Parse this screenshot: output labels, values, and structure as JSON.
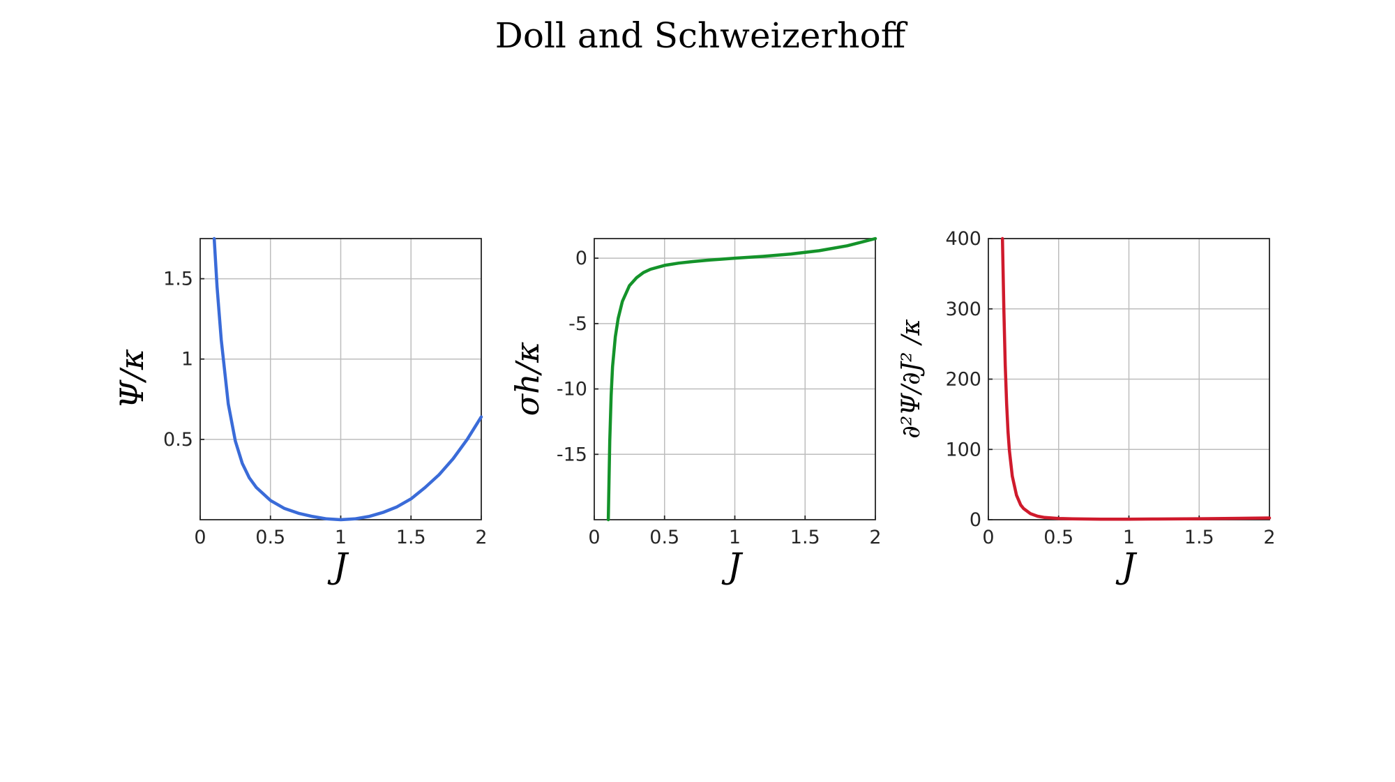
{
  "figure": {
    "title": "Doll and Schweizerhoff"
  },
  "chart_data": [
    {
      "type": "line",
      "title": "",
      "xlabel": "J",
      "ylabel": "Ψ/κ",
      "xlim": [
        0,
        2
      ],
      "ylim": [
        0,
        1.75
      ],
      "xticks": [
        0,
        0.5,
        1,
        1.5,
        2
      ],
      "xtick_labels": [
        "0",
        "0.5",
        "1",
        "1.5",
        "2"
      ],
      "yticks": [
        0.5,
        1,
        1.5
      ],
      "ytick_labels": [
        "0.5",
        "1",
        "1.5"
      ],
      "grid": true,
      "color": "#3a6bd8",
      "series": [
        {
          "x": [
            0.1,
            0.12,
            0.15,
            0.2,
            0.25,
            0.3,
            0.35,
            0.4,
            0.5,
            0.6,
            0.7,
            0.8,
            0.9,
            1.0,
            1.1,
            1.2,
            1.3,
            1.4,
            1.5,
            1.6,
            1.7,
            1.8,
            1.9,
            2.0
          ],
          "y": [
            1.75,
            1.45,
            1.12,
            0.72,
            0.49,
            0.35,
            0.26,
            0.2,
            0.12,
            0.07,
            0.04,
            0.02,
            0.005,
            0.0,
            0.005,
            0.02,
            0.045,
            0.08,
            0.13,
            0.2,
            0.28,
            0.38,
            0.5,
            0.64
          ]
        }
      ]
    },
    {
      "type": "line",
      "title": "",
      "xlabel": "J",
      "ylabel": "σh/κ",
      "xlim": [
        0,
        2
      ],
      "ylim": [
        -20,
        1.5
      ],
      "xticks": [
        0,
        0.5,
        1,
        1.5,
        2
      ],
      "xtick_labels": [
        "0",
        "0.5",
        "1",
        "1.5",
        "2"
      ],
      "yticks": [
        -15,
        -10,
        -5,
        0
      ],
      "ytick_labels": [
        "-15",
        "-10",
        "-5",
        "0"
      ],
      "grid": true,
      "color": "#14932a",
      "series": [
        {
          "x": [
            0.1,
            0.11,
            0.12,
            0.13,
            0.15,
            0.17,
            0.2,
            0.25,
            0.3,
            0.35,
            0.4,
            0.5,
            0.6,
            0.7,
            0.8,
            0.9,
            1.0,
            1.2,
            1.4,
            1.6,
            1.8,
            2.0
          ],
          "y": [
            -20,
            -14,
            -10.5,
            -8.3,
            -6.0,
            -4.6,
            -3.3,
            -2.1,
            -1.5,
            -1.1,
            -0.85,
            -0.55,
            -0.38,
            -0.26,
            -0.16,
            -0.08,
            0.0,
            0.14,
            0.32,
            0.57,
            0.95,
            1.5
          ]
        }
      ]
    },
    {
      "type": "line",
      "title": "",
      "xlabel": "J",
      "ylabel": "∂²Ψ/∂J² /κ",
      "xlim": [
        0,
        2
      ],
      "ylim": [
        0,
        400
      ],
      "xticks": [
        0,
        0.5,
        1,
        1.5,
        2
      ],
      "xtick_labels": [
        "0",
        "0.5",
        "1",
        "1.5",
        "2"
      ],
      "yticks": [
        0,
        100,
        200,
        300,
        400
      ],
      "ytick_labels": [
        "0",
        "100",
        "200",
        "300",
        "400"
      ],
      "grid": true,
      "color": "#cf1a2c",
      "series": [
        {
          "x": [
            0.1,
            0.11,
            0.12,
            0.13,
            0.14,
            0.15,
            0.17,
            0.2,
            0.23,
            0.25,
            0.3,
            0.35,
            0.4,
            0.5,
            0.6,
            0.8,
            1.0,
            1.2,
            1.5,
            2.0
          ],
          "y": [
            400,
            300,
            220,
            165,
            125,
            98,
            62,
            35,
            21,
            16,
            8.5,
            5,
            3.2,
            1.8,
            1.2,
            0.8,
            0.8,
            1.0,
            1.4,
            2.5
          ]
        }
      ]
    }
  ]
}
